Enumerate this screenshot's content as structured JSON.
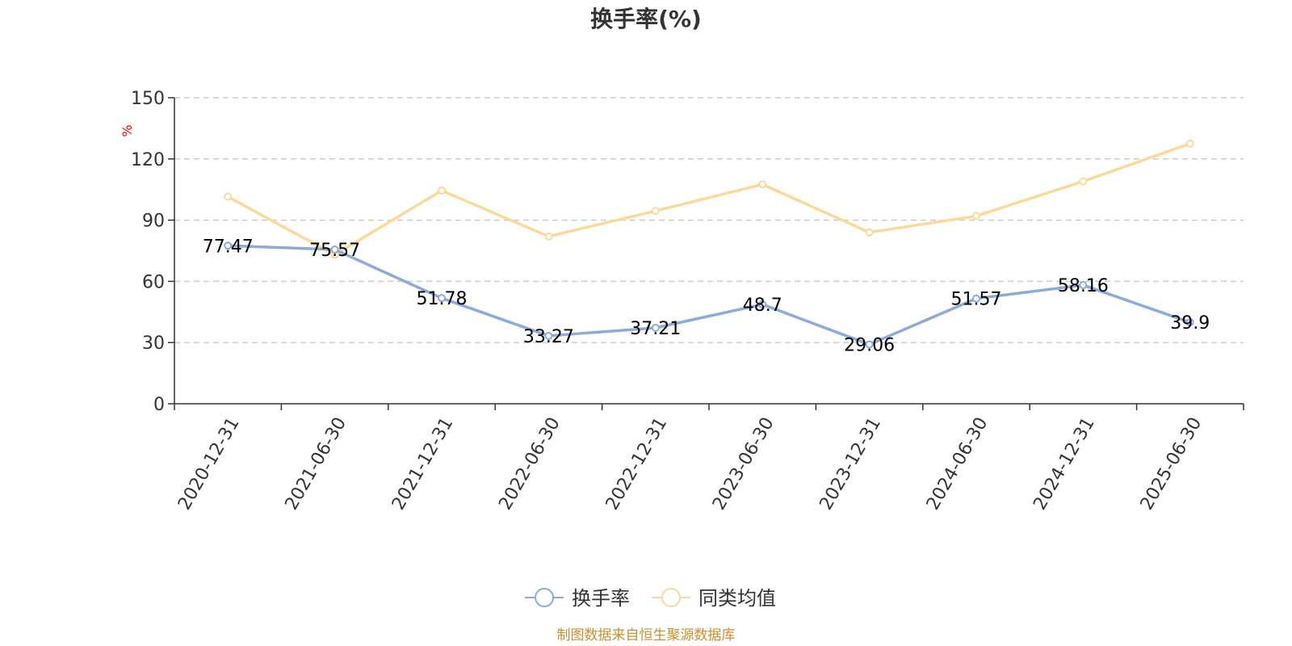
{
  "chart_data": {
    "type": "line",
    "title": "换手率(%)",
    "ylabel": "%",
    "xlabel": "",
    "ylim": [
      0,
      150
    ],
    "yticks": [
      0,
      30,
      60,
      90,
      120,
      150
    ],
    "grid": true,
    "legend_position": "bottom",
    "categories": [
      "2020-12-31",
      "2021-06-30",
      "2021-12-31",
      "2022-06-30",
      "2022-12-31",
      "2023-06-30",
      "2023-12-31",
      "2024-06-30",
      "2024-12-31",
      "2025-06-30"
    ],
    "series": [
      {
        "name": "换手率",
        "color": "#8eaad8",
        "show_labels": true,
        "values": [
          77.47,
          75.57,
          51.78,
          33.27,
          37.21,
          48.7,
          29.06,
          51.57,
          58.16,
          39.9
        ]
      },
      {
        "name": "同类均值",
        "color": "#fcd99a",
        "show_labels": false,
        "values": [
          101.5,
          73.0,
          104.5,
          82.0,
          94.5,
          107.5,
          84.0,
          92.0,
          109.0,
          127.5
        ]
      }
    ]
  },
  "source_text": "制图数据来自恒生聚源数据库",
  "colors": {
    "axis": "#333333",
    "grid": "#cccccc",
    "unit": "#ff0000",
    "source": "#c8902e"
  }
}
